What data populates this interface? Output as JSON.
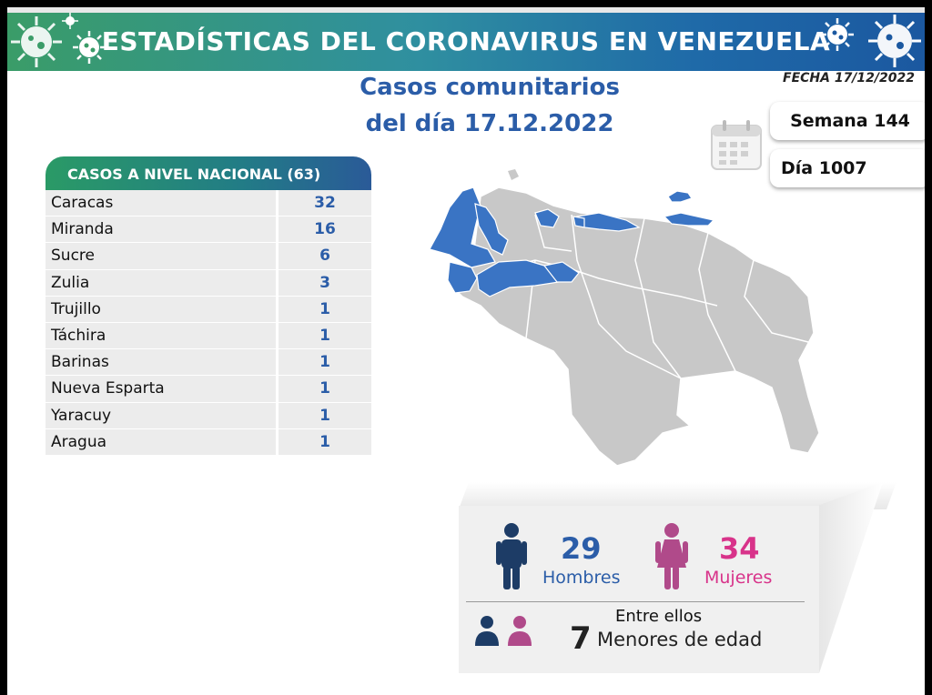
{
  "header": {
    "title": "ESTADÍSTICAS DEL CORONAVIRUS EN VENEZUELA",
    "date_label": "FECHA 17/12/2022"
  },
  "subtitle": {
    "line1": "Casos comunitarios",
    "line2": "del día 17.12.2022"
  },
  "counters": {
    "week": "Semana 144",
    "day": "Día 1007"
  },
  "table": {
    "heading": "CASOS A NIVEL NACIONAL  (63)",
    "rows": [
      {
        "state": "Caracas",
        "cases": "32"
      },
      {
        "state": "Miranda",
        "cases": "16"
      },
      {
        "state": "Sucre",
        "cases": "6"
      },
      {
        "state": "Zulia",
        "cases": "3"
      },
      {
        "state": "Trujillo",
        "cases": "1"
      },
      {
        "state": "Táchira",
        "cases": "1"
      },
      {
        "state": "Barinas",
        "cases": "1"
      },
      {
        "state": "Nueva Esparta",
        "cases": "1"
      },
      {
        "state": "Yaracuy",
        "cases": "1"
      },
      {
        "state": "Aragua",
        "cases": "1"
      }
    ]
  },
  "gender": {
    "men_count": "29",
    "men_label": "Hombres",
    "women_count": "34",
    "women_label": "Mujeres",
    "among_label": "Entre ellos",
    "minors_count": "7",
    "minors_label": "Menores de edad"
  },
  "icons": {
    "virus": "virus-icon",
    "calendar": "calendar-icon",
    "man": "man-icon",
    "woman": "woman-icon",
    "minors": "children-icon"
  },
  "colors": {
    "accent_blue": "#2b5da8",
    "map_highlight": "#3a74c4",
    "map_base": "#c8c8c8",
    "women": "#d8338a",
    "women_icon": "#b04a8a",
    "men_icon": "#1d3c66",
    "banner_green": "#3a9c68",
    "banner_blue": "#1b58a0"
  }
}
